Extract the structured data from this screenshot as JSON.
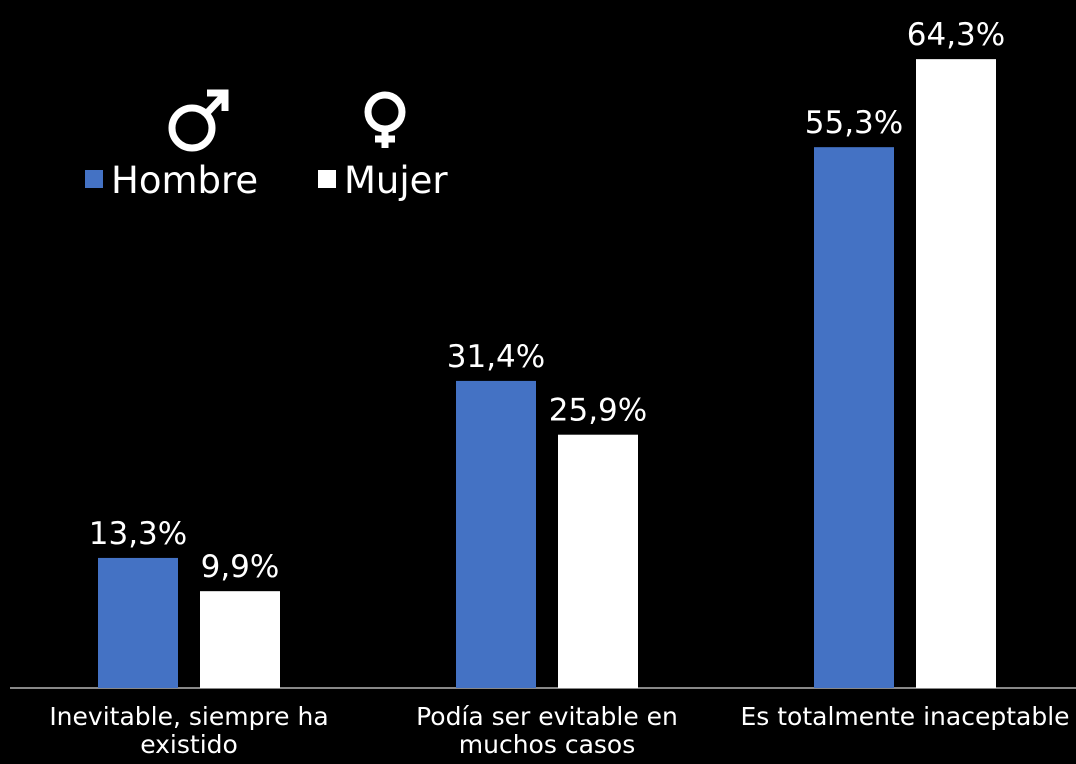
{
  "chart_data": {
    "type": "bar",
    "categories": [
      "Inevitable, siempre ha existido",
      "Podía ser evitable en muchos casos",
      "Es totalmente inaceptable"
    ],
    "series": [
      {
        "name": "Hombre",
        "color": "#4472c4",
        "values": [
          13.3,
          31.4,
          55.3
        ],
        "value_labels": [
          "13,3%",
          "31,4%",
          "55,3%"
        ]
      },
      {
        "name": "Mujer",
        "color": "#ffffff",
        "values": [
          9.9,
          25.9,
          64.3
        ],
        "value_labels": [
          "9,9%",
          "25,9%",
          "64,3%"
        ]
      }
    ],
    "legend": "top-left"
  }
}
